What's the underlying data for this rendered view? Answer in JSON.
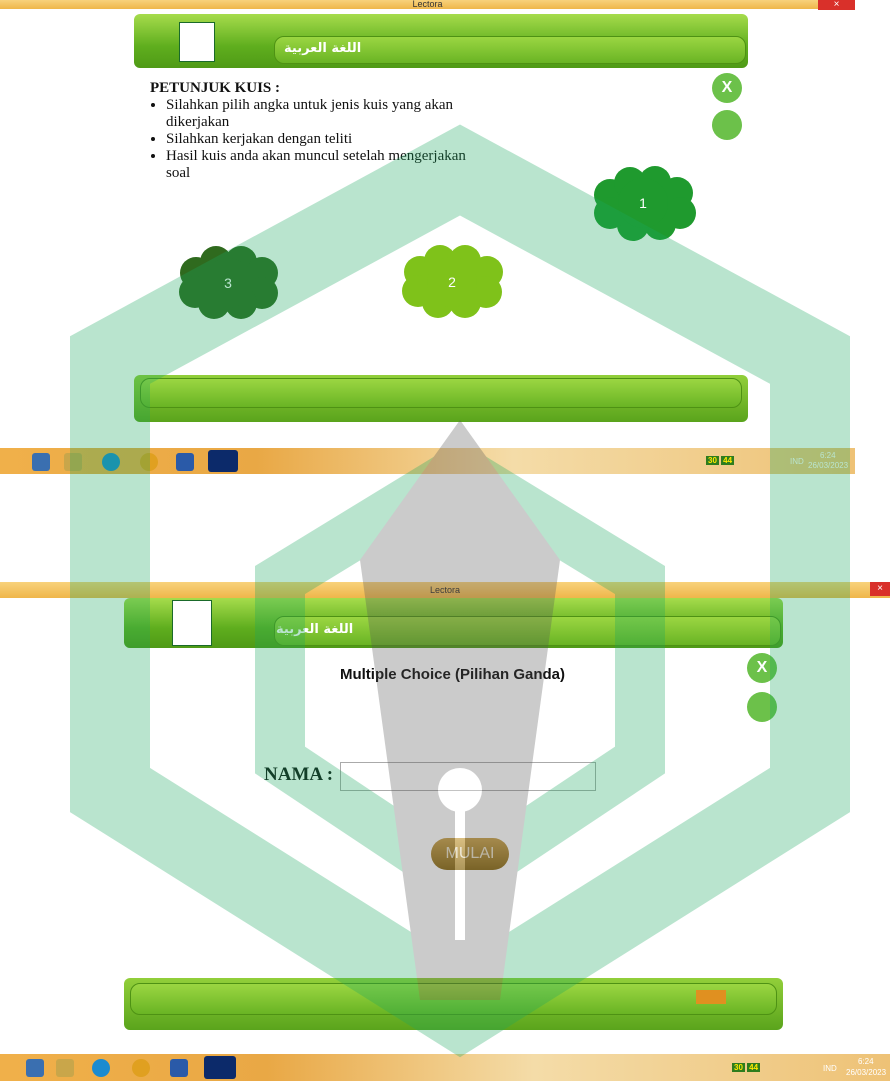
{
  "screens": [
    {
      "window_title": "Lectora",
      "header_title": "اللغة العربية",
      "taskbar": {
        "indicators": [
          "30",
          "44"
        ],
        "language": "IND",
        "time": "6:24",
        "date": "26/03/2023"
      }
    },
    {
      "window_title": "Lectora",
      "header_title": "اللغة العربية",
      "taskbar": {
        "indicators": [
          "30",
          "44"
        ],
        "language": "IND",
        "time": "6:24",
        "date": "26/03/2023"
      }
    }
  ],
  "instructions": {
    "title": "PETUNJUK KUIS  :",
    "items": [
      "Silahkan  pilih angka untuk jenis kuis yang akan dikerjakan",
      "Silahkan kerjakan dengan teliti",
      "Hasil kuis anda akan muncul setelah mengerjakan soal"
    ]
  },
  "quiz_buttons": [
    "1",
    "2",
    "3"
  ],
  "form": {
    "title": "Multiple Choice (Pilihan Ganda)",
    "name_label": "NAMA :",
    "start_button": "MULAI"
  }
}
